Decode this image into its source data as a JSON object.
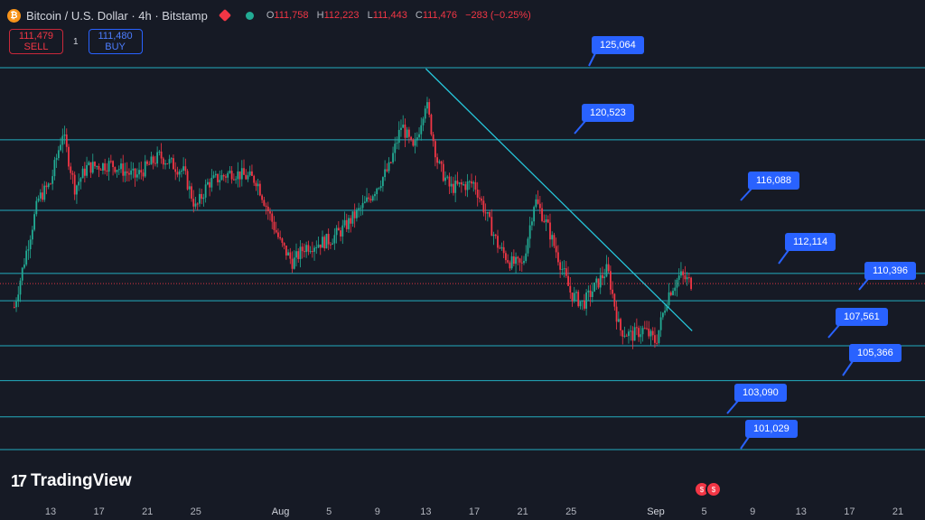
{
  "header": {
    "symbol": "Bitcoin / U.S. Dollar · 4h · Bitstamp",
    "btc_icon": "₿",
    "open_k": "O",
    "open": "111,758",
    "high_k": "H",
    "high": "112,223",
    "low_k": "L",
    "low": "111,443",
    "close_k": "C",
    "close": "111,476",
    "change": "−283 (−0.25%)"
  },
  "trade": {
    "sell_price": "111,479",
    "sell_label": "SELL",
    "qty": "1",
    "buy_price": "111,480",
    "buy_label": "BUY"
  },
  "branding": {
    "logo_text": "TradingView"
  },
  "colors": {
    "background": "#161a25",
    "up": "#22ab94",
    "down": "#f23645",
    "level_line": "#26c6da",
    "label": "#2962ff"
  },
  "chart_data": {
    "type": "candlestick",
    "title": "Bitcoin / U.S. Dollar · 4h · Bitstamp",
    "ylim": [
      99000,
      128000
    ],
    "x_ticks": [
      "13",
      "17",
      "21",
      "25",
      "Aug",
      "5",
      "9",
      "13",
      "17",
      "21",
      "25",
      "Sep",
      "5",
      "9",
      "13",
      "17",
      "21"
    ],
    "levels": [
      {
        "value": 125064,
        "label": "125,064"
      },
      {
        "value": 120523,
        "label": "120,523"
      },
      {
        "value": 116088,
        "label": "116,088"
      },
      {
        "value": 112114,
        "label": "112,114"
      },
      {
        "value": 110396,
        "label": "110,396"
      },
      {
        "value": 107561,
        "label": "107,561"
      },
      {
        "value": 105366,
        "label": "105,366"
      },
      {
        "value": 103090,
        "label": "103,090"
      },
      {
        "value": 101029,
        "label": "101,029"
      }
    ],
    "trendline": {
      "from": {
        "date": "Aug 13",
        "value": 125000
      },
      "to": {
        "date": "Sep 4",
        "value": 108500
      }
    },
    "last_price": 111476,
    "price_path": [
      {
        "date": "Jul 10",
        "close": 110000
      },
      {
        "date": "Jul 11",
        "close": 113500
      },
      {
        "date": "Jul 12",
        "close": 116800
      },
      {
        "date": "Jul 13",
        "close": 117800
      },
      {
        "date": "Jul 14",
        "close": 121000
      },
      {
        "date": "Jul 15",
        "close": 117500
      },
      {
        "date": "Jul 16",
        "close": 118800
      },
      {
        "date": "Jul 18",
        "close": 119000
      },
      {
        "date": "Jul 20",
        "close": 118200
      },
      {
        "date": "Jul 22",
        "close": 119500
      },
      {
        "date": "Jul 24",
        "close": 118500
      },
      {
        "date": "Jul 25",
        "close": 116200
      },
      {
        "date": "Jul 26",
        "close": 117800
      },
      {
        "date": "Jul 28",
        "close": 118500
      },
      {
        "date": "Jul 30",
        "close": 118000
      },
      {
        "date": "Aug 1",
        "close": 114000
      },
      {
        "date": "Aug 2",
        "close": 112800
      },
      {
        "date": "Aug 3",
        "close": 113800
      },
      {
        "date": "Aug 5",
        "close": 114200
      },
      {
        "date": "Aug 6",
        "close": 114800
      },
      {
        "date": "Aug 8",
        "close": 116500
      },
      {
        "date": "Aug 10",
        "close": 118800
      },
      {
        "date": "Aug 11",
        "close": 121500
      },
      {
        "date": "Aug 12",
        "close": 119800
      },
      {
        "date": "Aug 13",
        "close": 123000
      },
      {
        "date": "Aug 14",
        "close": 119000
      },
      {
        "date": "Aug 15",
        "close": 117500
      },
      {
        "date": "Aug 17",
        "close": 117800
      },
      {
        "date": "Aug 18",
        "close": 115800
      },
      {
        "date": "Aug 19",
        "close": 113800
      },
      {
        "date": "Aug 20",
        "close": 112800
      },
      {
        "date": "Aug 21",
        "close": 112600
      },
      {
        "date": "Aug 22",
        "close": 116800
      },
      {
        "date": "Aug 23",
        "close": 115200
      },
      {
        "date": "Aug 24",
        "close": 113000
      },
      {
        "date": "Aug 25",
        "close": 110800
      },
      {
        "date": "Aug 26",
        "close": 110200
      },
      {
        "date": "Aug 28",
        "close": 112400
      },
      {
        "date": "Aug 29",
        "close": 108600
      },
      {
        "date": "Aug 30",
        "close": 108200
      },
      {
        "date": "Aug 31",
        "close": 108600
      },
      {
        "date": "Sep 1",
        "close": 107800
      },
      {
        "date": "Sep 2",
        "close": 110800
      },
      {
        "date": "Sep 3",
        "close": 112000
      },
      {
        "date": "Sep 4",
        "close": 111476
      }
    ]
  }
}
